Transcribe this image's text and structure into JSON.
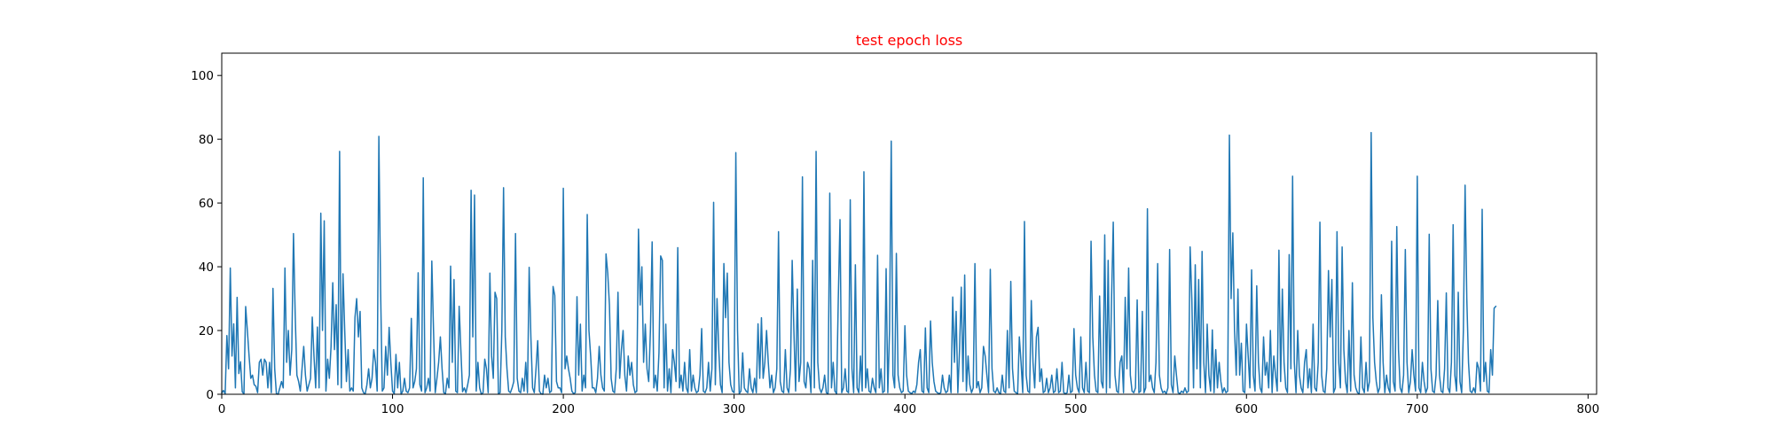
{
  "chart_data": {
    "type": "line",
    "title": "test epoch loss",
    "title_color": "#ff0000",
    "line_color": "#1f77b4",
    "xlabel": "",
    "ylabel": "",
    "xlim": [
      0,
      805
    ],
    "ylim": [
      0,
      107
    ],
    "grid": false,
    "x_ticks": [
      0,
      100,
      200,
      300,
      400,
      500,
      600,
      700,
      800
    ],
    "y_ticks": [
      0,
      20,
      40,
      60,
      80,
      100
    ],
    "x_tick_labels": [
      "0",
      "100",
      "200",
      "300",
      "400",
      "500",
      "600",
      "700",
      "800"
    ],
    "y_tick_labels": [
      "0",
      "20",
      "40",
      "60",
      "80",
      "100"
    ],
    "series": [
      {
        "values": [
          0.4,
          1.2,
          0.2,
          18.4,
          8.0,
          39.6,
          12.0,
          22.1,
          2.0,
          30.4,
          6.5,
          10.2,
          0.8,
          0.1,
          27.5,
          20.0,
          12.0,
          5.0,
          6.0,
          3.0,
          2.5,
          0.5,
          10.0,
          11.0,
          6.0,
          11.0,
          10.0,
          2.0,
          10.0,
          0.5,
          33.2,
          8.0,
          0.2,
          0.0,
          2.0,
          4.0,
          2.0,
          39.6,
          10.0,
          20.0,
          6.0,
          14.0,
          50.4,
          25.0,
          6.0,
          4.0,
          1.0,
          8.0,
          15.0,
          6.0,
          1.0,
          3.0,
          5.0,
          24.2,
          12.0,
          2.0,
          21.1,
          2.0,
          56.8,
          20.0,
          54.4,
          1.0,
          11.0,
          5.0,
          15.0,
          35.0,
          14.0,
          28.1,
          3.0,
          76.2,
          2.0,
          37.8,
          20.0,
          4.0,
          14.0,
          1.0,
          2.0,
          1.0,
          24.1,
          30.0,
          18.0,
          26.0,
          2.0,
          0.5,
          0.1,
          3.0,
          8.0,
          2.0,
          5.0,
          14.0,
          10.0,
          1.0,
          80.9,
          33.0,
          1.0,
          2.0,
          15.0,
          6.0,
          21.0,
          10.0,
          1.0,
          0.2,
          12.5,
          2.0,
          10.0,
          0.0,
          1.0,
          5.0,
          1.0,
          0.5,
          2.0,
          23.8,
          2.0,
          4.0,
          8.0,
          38.1,
          3.0,
          1.0,
          67.9,
          0.5,
          2.0,
          5.0,
          1.0,
          41.8,
          20.0,
          0.5,
          5.0,
          10.0,
          18.0,
          8.0,
          0.5,
          0.2,
          5.0,
          2.0,
          40.2,
          10.0,
          36.0,
          1.0,
          0.5,
          27.6,
          14.0,
          0.8,
          2.0,
          0.5,
          3.0,
          6.0,
          64.0,
          18.0,
          62.5,
          1.0,
          10.0,
          2.0,
          0.0,
          0.5,
          11.0,
          8.0,
          0.5,
          38.0,
          12.0,
          5.0,
          32.0,
          30.0,
          0.2,
          0.5,
          20.0,
          64.8,
          18.0,
          8.0,
          1.0,
          0.5,
          2.0,
          4.0,
          50.4,
          5.0,
          1.0,
          0.5,
          5.0,
          1.0,
          10.0,
          0.5,
          39.8,
          18.0,
          2.0,
          0.5,
          8.0,
          16.8,
          1.0,
          0.1,
          0.0,
          6.0,
          2.0,
          5.0,
          0.5,
          1.0,
          33.8,
          31.0,
          4.0,
          2.0,
          2.0,
          0.5,
          64.6,
          8.0,
          12.0,
          8.0,
          5.0,
          1.0,
          0.2,
          0.5,
          30.6,
          6.0,
          22.0,
          1.0,
          6.0,
          2.0,
          56.4,
          20.0,
          12.0,
          2.0,
          2.0,
          0.5,
          5.0,
          15.0,
          6.0,
          2.0,
          1.0,
          44.0,
          38.0,
          28.0,
          5.0,
          1.0,
          0.5,
          8.0,
          32.0,
          5.0,
          14.0,
          20.0,
          6.0,
          1.0,
          12.0,
          6.0,
          10.0,
          3.0,
          0.5,
          1.0,
          51.8,
          28.0,
          40.0,
          10.0,
          22.0,
          8.0,
          4.0,
          20.0,
          47.8,
          2.0,
          6.0,
          1.0,
          13.0,
          43.4,
          42.0,
          2.0,
          22.0,
          1.0,
          8.0,
          0.5,
          14.0,
          10.0,
          4.0,
          46.0,
          2.0,
          6.0,
          1.0,
          10.0,
          2.0,
          0.5,
          14.0,
          1.0,
          6.0,
          2.0,
          0.5,
          1.0,
          6.0,
          20.6,
          1.0,
          0.5,
          2.0,
          10.0,
          1.0,
          8.0,
          60.2,
          3.0,
          30.0,
          14.0,
          3.0,
          0.5,
          41.0,
          24.0,
          38.0,
          10.0,
          3.0,
          1.0,
          0.5,
          75.8,
          20.0,
          0.2,
          1.0,
          13.0,
          2.0,
          1.0,
          0.5,
          8.0,
          2.0,
          0.5,
          5.0,
          0.5,
          22.1,
          5.0,
          24.0,
          5.0,
          10.0,
          20.0,
          10.0,
          2.0,
          6.0,
          0.5,
          2.0,
          8.0,
          51.0,
          4.0,
          1.0,
          0.5,
          14.0,
          2.0,
          0.5,
          8.0,
          42.0,
          20.0,
          1.0,
          33.0,
          4.0,
          10.0,
          68.2,
          4.0,
          2.0,
          10.0,
          8.0,
          0.5,
          42.0,
          2.0,
          76.2,
          10.0,
          2.0,
          0.5,
          2.0,
          6.0,
          0.5,
          0.2,
          63.1,
          2.0,
          10.0,
          1.0,
          0.2,
          30.0,
          54.8,
          0.5,
          2.0,
          8.0,
          1.0,
          0.5,
          61.0,
          8.0,
          0.5,
          40.6,
          2.0,
          0.5,
          12.0,
          1.0,
          69.8,
          2.0,
          8.0,
          1.0,
          0.5,
          5.0,
          2.0,
          0.5,
          43.6,
          2.0,
          8.0,
          0.5,
          1.0,
          39.4,
          0.5,
          20.0,
          79.4,
          6.0,
          2.0,
          44.2,
          6.0,
          2.0,
          0.5,
          1.0,
          21.5,
          6.0,
          1.0,
          0.5,
          0.2,
          1.0,
          0.5,
          3.0,
          10.0,
          14.0,
          1.0,
          0.5,
          20.8,
          2.0,
          0.5,
          23.0,
          10.0,
          4.0,
          1.0,
          0.5,
          0.2,
          0.5,
          6.0,
          2.0,
          0.5,
          1.0,
          6.0,
          0.5,
          30.5,
          10.0,
          26.0,
          0.5,
          14.0,
          33.6,
          4.0,
          37.4,
          1.0,
          12.0,
          3.0,
          0.5,
          2.0,
          41.0,
          2.0,
          4.0,
          0.5,
          2.0,
          15.0,
          12.0,
          6.0,
          0.5,
          39.2,
          8.0,
          1.0,
          0.5,
          2.0,
          0.5,
          0.2,
          6.0,
          1.0,
          0.5,
          20.0,
          2.0,
          35.4,
          8.0,
          1.0,
          0.5,
          0.2,
          18.0,
          10.0,
          0.5,
          54.2,
          6.0,
          1.0,
          0.5,
          29.4,
          10.0,
          2.0,
          18.0,
          21.0,
          4.0,
          8.0,
          0.5,
          1.0,
          5.0,
          0.5,
          2.0,
          6.0,
          0.5,
          1.0,
          8.0,
          0.5,
          1.0,
          10.0,
          0.5,
          0.2,
          0.5,
          6.0,
          0.5,
          1.0,
          20.6,
          6.0,
          2.0,
          0.5,
          18.0,
          2.0,
          0.5,
          10.0,
          1.0,
          0.5,
          48.0,
          18.0,
          6.0,
          1.0,
          0.5,
          30.8,
          4.0,
          2.0,
          50.0,
          0.5,
          42.0,
          2.0,
          30.0,
          54.0,
          6.0,
          1.0,
          0.5,
          10.0,
          12.0,
          0.5,
          30.4,
          8.0,
          39.6,
          6.0,
          1.0,
          0.5,
          2.0,
          29.6,
          0.5,
          1.0,
          26.0,
          0.5,
          2.0,
          58.2,
          4.0,
          6.0,
          2.0,
          0.5,
          10.0,
          41.0,
          6.0,
          2.0,
          0.5,
          1.0,
          0.2,
          2.0,
          45.4,
          3.0,
          0.5,
          12.0,
          6.0,
          0.5,
          0.2,
          1.0,
          0.5,
          2.0,
          0.5,
          1.0,
          46.2,
          30.0,
          2.0,
          40.6,
          8.0,
          36.0,
          2.0,
          44.8,
          10.0,
          0.5,
          22.0,
          6.0,
          1.0,
          20.2,
          0.5,
          14.0,
          2.0,
          10.0,
          4.0,
          0.5,
          2.0,
          0.5,
          1.0,
          81.3,
          30.0,
          50.6,
          20.0,
          6.0,
          33.0,
          6.0,
          16.0,
          1.0,
          0.5,
          22.0,
          12.0,
          2.0,
          39.0,
          6.0,
          1.0,
          34.0,
          10.0,
          2.0,
          0.5,
          18.0,
          6.0,
          10.0,
          2.0,
          20.0,
          0.5,
          12.0,
          6.0,
          1.0,
          45.2,
          4.0,
          33.0,
          10.0,
          2.0,
          0.5,
          43.8,
          8.0,
          68.4,
          10.0,
          0.5,
          20.0,
          6.0,
          2.0,
          0.5,
          10.0,
          14.0,
          2.0,
          8.0,
          0.5,
          22.0,
          2.0,
          1.0,
          10.0,
          54.0,
          6.0,
          1.0,
          0.5,
          8.0,
          38.8,
          18.0,
          36.0,
          0.5,
          2.0,
          51.0,
          10.0,
          2.0,
          46.2,
          14.0,
          4.0,
          0.5,
          20.0,
          1.0,
          35.0,
          6.0,
          2.0,
          0.5,
          0.2,
          18.0,
          2.0,
          0.5,
          10.0,
          1.0,
          4.0,
          82.1,
          24.0,
          10.0,
          4.0,
          0.5,
          2.0,
          31.2,
          10.0,
          0.5,
          6.0,
          2.0,
          0.5,
          48.0,
          4.0,
          1.0,
          52.6,
          14.0,
          2.0,
          0.5,
          6.0,
          45.4,
          10.0,
          0.5,
          4.0,
          14.0,
          6.0,
          1.0,
          68.4,
          2.0,
          0.5,
          10.0,
          4.0,
          0.5,
          2.0,
          50.2,
          8.0,
          1.0,
          0.5,
          6.0,
          29.4,
          6.0,
          1.0,
          0.5,
          8.0,
          31.8,
          2.0,
          0.5,
          10.0,
          53.2,
          6.0,
          1.0,
          32.0,
          4.0,
          0.5,
          20.0,
          65.6,
          30.0,
          10.0,
          1.0,
          0.5,
          2.0,
          0.5,
          10.0,
          8.0,
          1.0,
          58.0,
          4.0,
          10.0,
          1.0,
          0.5,
          14.0,
          6.0,
          27.0,
          27.6
        ]
      }
    ]
  }
}
